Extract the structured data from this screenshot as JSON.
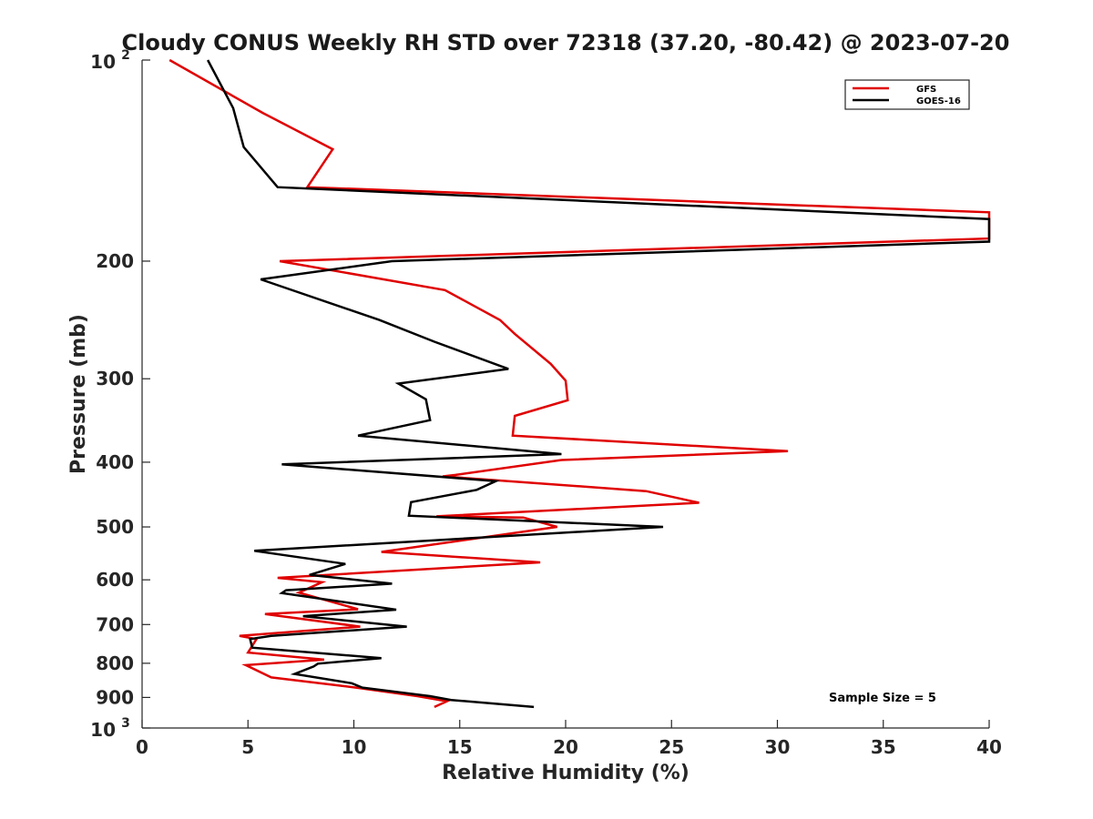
{
  "chart_data": {
    "type": "line",
    "title": "Cloudy CONUS Weekly RH STD over 72318 (37.20, -80.42) @ 2023-07-20",
    "xlabel": "Relative Humidity (%)",
    "ylabel": "Pressure (mb)",
    "xlim": [
      0,
      40
    ],
    "ylim": [
      100,
      1000
    ],
    "yscale": "log",
    "yreversed": true,
    "x_ticks": [
      "0",
      "5",
      "10",
      "15",
      "20",
      "25",
      "30",
      "35",
      "40"
    ],
    "y_ticks": [
      {
        "value": 100,
        "base": "10",
        "exp": "2"
      },
      {
        "value": 200,
        "label": "200"
      },
      {
        "value": 300,
        "label": "300"
      },
      {
        "value": 400,
        "label": "400"
      },
      {
        "value": 500,
        "label": "500"
      },
      {
        "value": 600,
        "label": "600"
      },
      {
        "value": 700,
        "label": "700"
      },
      {
        "value": 800,
        "label": "800"
      },
      {
        "value": 900,
        "label": "900"
      },
      {
        "value": 1000,
        "base": "10",
        "exp": "3"
      }
    ],
    "legend_position": "top-right",
    "annotation": "Sample Size = 5",
    "series": [
      {
        "name": "GFS",
        "color": "#e00000",
        "points": [
          [
            1.3,
            100
          ],
          [
            5.7,
            120
          ],
          [
            9.0,
            136
          ],
          [
            7.8,
            155
          ],
          [
            40.0,
            169
          ],
          [
            40.0,
            185
          ],
          [
            6.5,
            200
          ],
          [
            14.3,
            221
          ],
          [
            16.9,
            245
          ],
          [
            17.6,
            257
          ],
          [
            19.3,
            285
          ],
          [
            20.0,
            302
          ],
          [
            20.1,
            323
          ],
          [
            17.6,
            341
          ],
          [
            17.5,
            365
          ],
          [
            30.5,
            385
          ],
          [
            19.8,
            397
          ],
          [
            14.8,
            418
          ],
          [
            14.2,
            420
          ],
          [
            23.8,
            442
          ],
          [
            26.3,
            460
          ],
          [
            13.9,
            482
          ],
          [
            18.0,
            484
          ],
          [
            19.6,
            500
          ],
          [
            11.3,
            545
          ],
          [
            18.8,
            565
          ],
          [
            6.4,
            596
          ],
          [
            8.5,
            605
          ],
          [
            7.4,
            627
          ],
          [
            10.2,
            664
          ],
          [
            5.8,
            675
          ],
          [
            10.3,
            705
          ],
          [
            4.6,
            728
          ],
          [
            5.4,
            736
          ],
          [
            5.0,
            771
          ],
          [
            8.6,
            790
          ],
          [
            4.9,
            805
          ],
          [
            6.1,
            840
          ],
          [
            10.1,
            870
          ],
          [
            13.0,
            896
          ],
          [
            14.4,
            912
          ],
          [
            13.8,
            930
          ]
        ]
      },
      {
        "name": "GOES-16",
        "color": "#000000",
        "points": [
          [
            3.1,
            100
          ],
          [
            4.3,
            118
          ],
          [
            4.8,
            135
          ],
          [
            6.4,
            155
          ],
          [
            40.0,
            173
          ],
          [
            40.0,
            187
          ],
          [
            11.8,
            200
          ],
          [
            5.6,
            213
          ],
          [
            11.2,
            245
          ],
          [
            13.8,
            264
          ],
          [
            17.3,
            290
          ],
          [
            12.1,
            305
          ],
          [
            13.4,
            322
          ],
          [
            13.6,
            346
          ],
          [
            10.2,
            365
          ],
          [
            19.8,
            389
          ],
          [
            6.6,
            403
          ],
          [
            16.7,
            427
          ],
          [
            15.8,
            440
          ],
          [
            12.7,
            459
          ],
          [
            12.6,
            481
          ],
          [
            24.6,
            500
          ],
          [
            5.3,
            543
          ],
          [
            9.6,
            568
          ],
          [
            7.9,
            590
          ],
          [
            11.8,
            608
          ],
          [
            6.8,
            622
          ],
          [
            6.6,
            628
          ],
          [
            12.0,
            665
          ],
          [
            7.6,
            680
          ],
          [
            12.5,
            705
          ],
          [
            6.1,
            728
          ],
          [
            5.1,
            736
          ],
          [
            5.2,
            758
          ],
          [
            11.3,
            786
          ],
          [
            8.3,
            801
          ],
          [
            8.1,
            809
          ],
          [
            7.2,
            830
          ],
          [
            9.9,
            857
          ],
          [
            10.4,
            870
          ],
          [
            13.6,
            896
          ],
          [
            14.6,
            908
          ],
          [
            18.5,
            930
          ]
        ]
      }
    ]
  }
}
